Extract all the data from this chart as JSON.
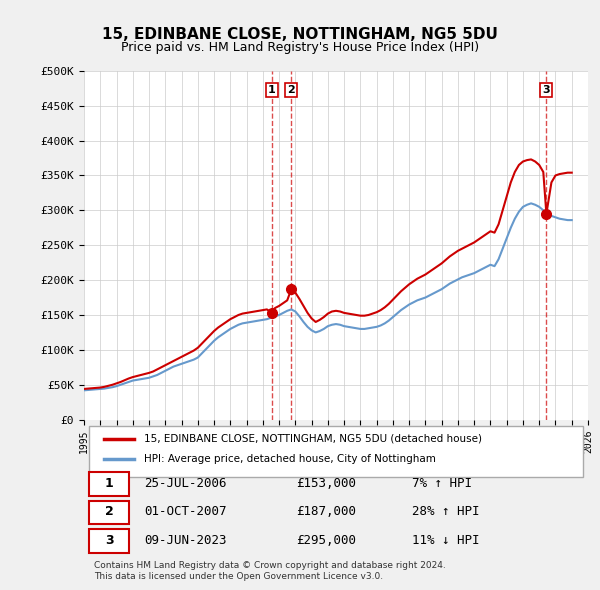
{
  "title": "15, EDINBANE CLOSE, NOTTINGHAM, NG5 5DU",
  "subtitle": "Price paid vs. HM Land Registry's House Price Index (HPI)",
  "ylabel_ticks": [
    "£0",
    "£50K",
    "£100K",
    "£150K",
    "£200K",
    "£250K",
    "£300K",
    "£350K",
    "£400K",
    "£450K",
    "£500K"
  ],
  "ytick_values": [
    0,
    50000,
    100000,
    150000,
    200000,
    250000,
    300000,
    350000,
    400000,
    450000,
    500000
  ],
  "ylim": [
    0,
    500000
  ],
  "xlim_start": 1995,
  "xlim_end": 2026,
  "background_color": "#f0f0f0",
  "plot_bg_color": "#ffffff",
  "grid_color": "#cccccc",
  "hpi_color": "#6699cc",
  "price_color": "#cc0000",
  "sale_marker_color": "#cc0000",
  "vline_color_sale1": "#cc0000",
  "vline_color_sale2": "#cc0000",
  "vline_color_sale3": "#cc0000",
  "legend_label_price": "15, EDINBANE CLOSE, NOTTINGHAM, NG5 5DU (detached house)",
  "legend_label_hpi": "HPI: Average price, detached house, City of Nottingham",
  "transactions": [
    {
      "num": 1,
      "date": "25-JUL-2006",
      "price": 153000,
      "pct": "7%",
      "dir": "↑",
      "year": 2006.56
    },
    {
      "num": 2,
      "date": "01-OCT-2007",
      "price": 187000,
      "pct": "28%",
      "dir": "↑",
      "year": 2007.75
    },
    {
      "num": 3,
      "date": "09-JUN-2023",
      "price": 295000,
      "pct": "11%",
      "dir": "↓",
      "year": 2023.44
    }
  ],
  "footnote1": "Contains HM Land Registry data © Crown copyright and database right 2024.",
  "footnote2": "This data is licensed under the Open Government Licence v3.0.",
  "hpi_data_x": [
    1995,
    1995.25,
    1995.5,
    1995.75,
    1996,
    1996.25,
    1996.5,
    1996.75,
    1997,
    1997.25,
    1997.5,
    1997.75,
    1998,
    1998.25,
    1998.5,
    1998.75,
    1999,
    1999.25,
    1999.5,
    1999.75,
    2000,
    2000.25,
    2000.5,
    2000.75,
    2001,
    2001.25,
    2001.5,
    2001.75,
    2002,
    2002.25,
    2002.5,
    2002.75,
    2003,
    2003.25,
    2003.5,
    2003.75,
    2004,
    2004.25,
    2004.5,
    2004.75,
    2005,
    2005.25,
    2005.5,
    2005.75,
    2006,
    2006.25,
    2006.5,
    2006.75,
    2007,
    2007.25,
    2007.5,
    2007.75,
    2008,
    2008.25,
    2008.5,
    2008.75,
    2009,
    2009.25,
    2009.5,
    2009.75,
    2010,
    2010.25,
    2010.5,
    2010.75,
    2011,
    2011.25,
    2011.5,
    2011.75,
    2012,
    2012.25,
    2012.5,
    2012.75,
    2013,
    2013.25,
    2013.5,
    2013.75,
    2014,
    2014.25,
    2014.5,
    2014.75,
    2015,
    2015.25,
    2015.5,
    2015.75,
    2016,
    2016.25,
    2016.5,
    2016.75,
    2017,
    2017.25,
    2017.5,
    2017.75,
    2018,
    2018.25,
    2018.5,
    2018.75,
    2019,
    2019.25,
    2019.5,
    2019.75,
    2020,
    2020.25,
    2020.5,
    2020.75,
    2021,
    2021.25,
    2021.5,
    2021.75,
    2022,
    2022.25,
    2022.5,
    2022.75,
    2023,
    2023.25,
    2023.5,
    2023.75,
    2024,
    2024.25,
    2024.5,
    2024.75,
    2025
  ],
  "hpi_data_y": [
    42000,
    42500,
    43000,
    43500,
    44000,
    44500,
    45500,
    46500,
    48000,
    50000,
    52000,
    54000,
    56000,
    57000,
    58000,
    59000,
    60000,
    62000,
    64000,
    67000,
    70000,
    73000,
    76000,
    78000,
    80000,
    82000,
    84000,
    86000,
    89000,
    95000,
    101000,
    107000,
    113000,
    118000,
    122000,
    126000,
    130000,
    133000,
    136000,
    138000,
    139000,
    140000,
    141000,
    142000,
    143000,
    144000,
    146000,
    148000,
    150000,
    153000,
    156000,
    158000,
    155000,
    148000,
    140000,
    133000,
    128000,
    125000,
    127000,
    130000,
    134000,
    136000,
    137000,
    136000,
    134000,
    133000,
    132000,
    131000,
    130000,
    130000,
    131000,
    132000,
    133000,
    135000,
    138000,
    142000,
    147000,
    152000,
    157000,
    161000,
    165000,
    168000,
    171000,
    173000,
    175000,
    178000,
    181000,
    184000,
    187000,
    191000,
    195000,
    198000,
    201000,
    204000,
    206000,
    208000,
    210000,
    213000,
    216000,
    219000,
    222000,
    220000,
    230000,
    245000,
    260000,
    275000,
    288000,
    298000,
    305000,
    308000,
    310000,
    308000,
    305000,
    300000,
    296000,
    292000,
    290000,
    288000,
    287000,
    286000,
    286000
  ],
  "price_data_x": [
    1995,
    1995.25,
    1995.5,
    1995.75,
    1996,
    1996.25,
    1996.5,
    1996.75,
    1997,
    1997.25,
    1997.5,
    1997.75,
    1998,
    1998.25,
    1998.5,
    1998.75,
    1999,
    1999.25,
    1999.5,
    1999.75,
    2000,
    2000.25,
    2000.5,
    2000.75,
    2001,
    2001.25,
    2001.5,
    2001.75,
    2002,
    2002.25,
    2002.5,
    2002.75,
    2003,
    2003.25,
    2003.5,
    2003.75,
    2004,
    2004.25,
    2004.5,
    2004.75,
    2005,
    2005.25,
    2005.5,
    2005.75,
    2006,
    2006.25,
    2006.56,
    2006.75,
    2007,
    2007.25,
    2007.5,
    2007.75,
    2008,
    2008.25,
    2008.5,
    2008.75,
    2009,
    2009.25,
    2009.5,
    2009.75,
    2010,
    2010.25,
    2010.5,
    2010.75,
    2011,
    2011.25,
    2011.5,
    2011.75,
    2012,
    2012.25,
    2012.5,
    2012.75,
    2013,
    2013.25,
    2013.5,
    2013.75,
    2014,
    2014.25,
    2014.5,
    2014.75,
    2015,
    2015.25,
    2015.5,
    2015.75,
    2016,
    2016.25,
    2016.5,
    2016.75,
    2017,
    2017.25,
    2017.5,
    2017.75,
    2018,
    2018.25,
    2018.5,
    2018.75,
    2019,
    2019.25,
    2019.5,
    2019.75,
    2020,
    2020.25,
    2020.5,
    2020.75,
    2021,
    2021.25,
    2021.5,
    2021.75,
    2022,
    2022.25,
    2022.5,
    2022.75,
    2023,
    2023.25,
    2023.44,
    2023.75,
    2024,
    2024.25,
    2024.5,
    2024.75,
    2025
  ],
  "price_data_y": [
    44000,
    44500,
    45000,
    45500,
    46000,
    47000,
    48500,
    50000,
    52000,
    54000,
    56500,
    59000,
    61000,
    62500,
    64000,
    65500,
    67000,
    69000,
    72000,
    75000,
    78000,
    81000,
    84000,
    87000,
    90000,
    93000,
    96000,
    99000,
    103000,
    109000,
    115000,
    121000,
    127000,
    132000,
    136000,
    140000,
    144000,
    147000,
    150000,
    152000,
    153000,
    154000,
    155000,
    156000,
    157000,
    158000,
    153000,
    160000,
    163000,
    167000,
    171000,
    187000,
    182000,
    173000,
    163000,
    153000,
    145000,
    140000,
    143000,
    147000,
    152000,
    155000,
    156000,
    155000,
    153000,
    152000,
    151000,
    150000,
    149000,
    149000,
    150000,
    152000,
    154000,
    157000,
    161000,
    166000,
    172000,
    178000,
    184000,
    189000,
    194000,
    198000,
    202000,
    205000,
    208000,
    212000,
    216000,
    220000,
    224000,
    229000,
    234000,
    238000,
    242000,
    245000,
    248000,
    251000,
    254000,
    258000,
    262000,
    266000,
    270000,
    268000,
    280000,
    300000,
    320000,
    340000,
    355000,
    365000,
    370000,
    372000,
    373000,
    370000,
    365000,
    355000,
    295000,
    340000,
    350000,
    352000,
    353000,
    354000,
    354000
  ]
}
